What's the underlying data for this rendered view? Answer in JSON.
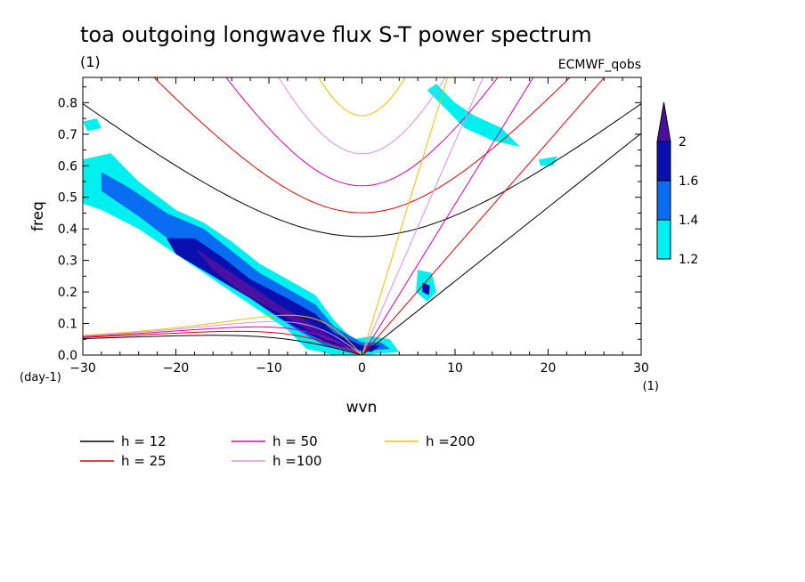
{
  "chart_data": {
    "type": "heatmap",
    "title": "toa outgoing longwave flux S-T power spectrum",
    "subtitle": "(1)",
    "source_label": "ECMWF_qobs",
    "xlabel": "wvn",
    "ylabel": "freq",
    "x_unit": "(1)",
    "y_unit": "(day-1)",
    "xlim": [
      -30,
      30
    ],
    "ylim": [
      0,
      0.88
    ],
    "x_ticks": [
      -30,
      -20,
      -10,
      0,
      10,
      20,
      30
    ],
    "y_ticks": [
      0.0,
      0.1,
      0.2,
      0.3,
      0.4,
      0.5,
      0.6,
      0.7,
      0.8
    ],
    "colorbar": {
      "levels": [
        1.2,
        1.4,
        1.6,
        2
      ],
      "labels": [
        "1.2",
        "1.4",
        "1.6",
        "2"
      ],
      "colors": [
        "#00f0f0",
        "#0a6cf0",
        "#0a10b0",
        "#4a10a0"
      ]
    },
    "dispersion_curves": [
      {
        "name": "h = 12",
        "h": 12,
        "color": "#000000"
      },
      {
        "name": "h = 25",
        "h": 25,
        "color": "#e00000"
      },
      {
        "name": "h = 50",
        "h": 50,
        "color": "#d000b0"
      },
      {
        "name": "h =100",
        "h": 100,
        "color": "#e090e0"
      },
      {
        "name": "h =200",
        "h": 200,
        "color": "#f0c000"
      }
    ],
    "contour_regions": [
      {
        "level": 1.2,
        "points": [
          [
            -30,
            0.62
          ],
          [
            -27,
            0.64
          ],
          [
            -24,
            0.55
          ],
          [
            -20,
            0.46
          ],
          [
            -17,
            0.42
          ],
          [
            -14,
            0.36
          ],
          [
            -11,
            0.29
          ],
          [
            -8,
            0.24
          ],
          [
            -5,
            0.19
          ],
          [
            -3,
            0.11
          ],
          [
            -1,
            0.05
          ],
          [
            1,
            0.06
          ],
          [
            3,
            0.05
          ],
          [
            4,
            0.01
          ],
          [
            0,
            0.0
          ],
          [
            -3,
            0.0
          ],
          [
            -6,
            0.02
          ],
          [
            -8,
            0.08
          ],
          [
            -11,
            0.14
          ],
          [
            -14,
            0.2
          ],
          [
            -17,
            0.26
          ],
          [
            -20,
            0.32
          ],
          [
            -24,
            0.4
          ],
          [
            -28,
            0.46
          ],
          [
            -30,
            0.48
          ]
        ]
      },
      {
        "level": 1.4,
        "points": [
          [
            -28,
            0.58
          ],
          [
            -25,
            0.53
          ],
          [
            -21,
            0.45
          ],
          [
            -17,
            0.4
          ],
          [
            -14,
            0.33
          ],
          [
            -11,
            0.26
          ],
          [
            -8,
            0.21
          ],
          [
            -5,
            0.16
          ],
          [
            -3,
            0.09
          ],
          [
            0,
            0.04
          ],
          [
            2,
            0.04
          ],
          [
            3,
            0.02
          ],
          [
            -1,
            0.01
          ],
          [
            -4,
            0.03
          ],
          [
            -7,
            0.08
          ],
          [
            -10,
            0.14
          ],
          [
            -13,
            0.21
          ],
          [
            -16,
            0.27
          ],
          [
            -20,
            0.35
          ],
          [
            -24,
            0.44
          ],
          [
            -28,
            0.52
          ]
        ]
      },
      {
        "level": 1.6,
        "points": [
          [
            -21,
            0.37
          ],
          [
            -18,
            0.37
          ],
          [
            -15,
            0.31
          ],
          [
            -12,
            0.24
          ],
          [
            -8,
            0.18
          ],
          [
            -5,
            0.13
          ],
          [
            -3,
            0.07
          ],
          [
            0,
            0.03
          ],
          [
            2,
            0.03
          ],
          [
            1,
            0.01
          ],
          [
            -3,
            0.03
          ],
          [
            -6,
            0.07
          ],
          [
            -9,
            0.12
          ],
          [
            -12,
            0.18
          ],
          [
            -16,
            0.25
          ],
          [
            -20,
            0.32
          ]
        ]
      },
      {
        "level": 2,
        "points": [
          [
            -18,
            0.34
          ],
          [
            -15,
            0.28
          ],
          [
            -12,
            0.22
          ],
          [
            -9,
            0.16
          ],
          [
            -6,
            0.11
          ],
          [
            -3,
            0.05
          ],
          [
            -1,
            0.03
          ],
          [
            -4,
            0.05
          ],
          [
            -7,
            0.1
          ],
          [
            -10,
            0.15
          ],
          [
            -13,
            0.2
          ],
          [
            -16,
            0.27
          ]
        ]
      },
      {
        "level": 1.2,
        "points": [
          [
            8,
            0.86
          ],
          [
            10,
            0.8
          ],
          [
            12,
            0.76
          ],
          [
            15,
            0.72
          ],
          [
            17,
            0.66
          ],
          [
            14,
            0.68
          ],
          [
            11,
            0.72
          ],
          [
            9,
            0.78
          ],
          [
            7,
            0.84
          ]
        ]
      },
      {
        "level": 1.2,
        "points": [
          [
            6,
            0.27
          ],
          [
            7.5,
            0.26
          ],
          [
            8,
            0.2
          ],
          [
            7,
            0.17
          ],
          [
            5.8,
            0.2
          ]
        ]
      },
      {
        "level": 1.6,
        "points": [
          [
            6.5,
            0.23
          ],
          [
            7.3,
            0.22
          ],
          [
            7.2,
            0.19
          ],
          [
            6.5,
            0.2
          ]
        ]
      },
      {
        "level": 1.2,
        "points": [
          [
            -30,
            0.74
          ],
          [
            -28.5,
            0.75
          ],
          [
            -28,
            0.72
          ],
          [
            -29.5,
            0.71
          ]
        ]
      },
      {
        "level": 1.2,
        "points": [
          [
            19,
            0.62
          ],
          [
            21,
            0.63
          ],
          [
            20.5,
            0.6
          ],
          [
            19.2,
            0.6
          ]
        ]
      }
    ]
  }
}
